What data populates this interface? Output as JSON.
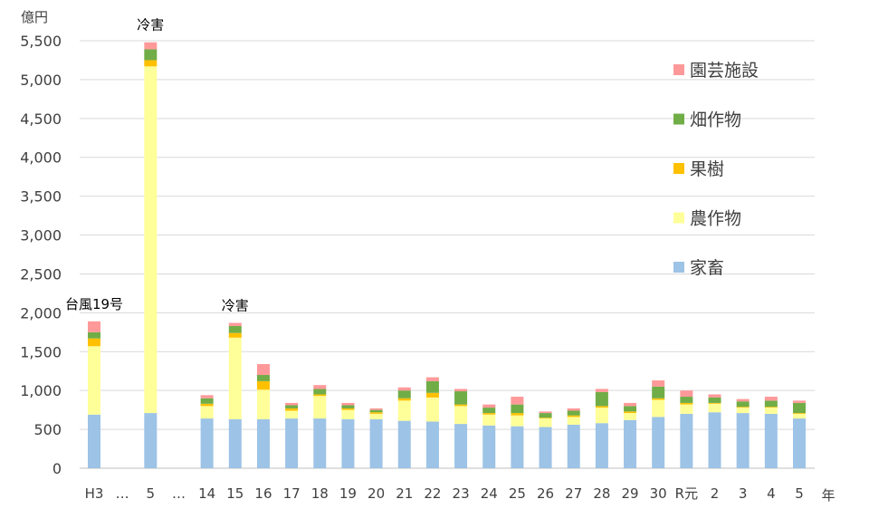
{
  "chart_data": {
    "type": "bar",
    "stacked": true,
    "ylabel": "億円",
    "xlabel": "年",
    "ylim": [
      0,
      5500
    ],
    "yticks": [
      0,
      500,
      1000,
      1500,
      2000,
      2500,
      3000,
      3500,
      4000,
      4500,
      5000,
      5500
    ],
    "ytick_labels": [
      "0",
      "500",
      "1,000",
      "1,500",
      "2,000",
      "2,500",
      "3,000",
      "3,500",
      "4,000",
      "4,500",
      "5,000",
      "5,500"
    ],
    "grid": true,
    "legend_position": "top-right",
    "categories": [
      "H3",
      "…",
      "5",
      "…",
      "14",
      "15",
      "16",
      "17",
      "18",
      "19",
      "20",
      "21",
      "22",
      "23",
      "24",
      "25",
      "26",
      "27",
      "28",
      "29",
      "30",
      "R元",
      "2",
      "3",
      "4",
      "5"
    ],
    "series": [
      {
        "name": "家畜",
        "color": "#9DC3E6",
        "values": [
          690,
          null,
          710,
          null,
          640,
          630,
          630,
          640,
          640,
          630,
          630,
          610,
          600,
          570,
          550,
          540,
          530,
          560,
          580,
          620,
          660,
          700,
          720,
          710,
          700,
          640
        ]
      },
      {
        "name": "農作物",
        "color": "#FFFF99",
        "values": [
          880,
          null,
          4460,
          null,
          160,
          1050,
          380,
          100,
          290,
          120,
          70,
          260,
          310,
          230,
          140,
          140,
          110,
          100,
          200,
          90,
          220,
          120,
          110,
          70,
          80,
          60
        ]
      },
      {
        "name": "果樹",
        "color": "#FFC000",
        "values": [
          100,
          null,
          80,
          null,
          30,
          60,
          110,
          30,
          20,
          20,
          20,
          30,
          60,
          20,
          20,
          30,
          10,
          20,
          20,
          20,
          20,
          20,
          10,
          10,
          10,
          10
        ]
      },
      {
        "name": "畑作物",
        "color": "#70AD47",
        "values": [
          80,
          null,
          140,
          null,
          70,
          90,
          80,
          40,
          70,
          40,
          30,
          100,
          150,
          170,
          70,
          110,
          60,
          60,
          180,
          70,
          150,
          80,
          70,
          70,
          80,
          130
        ]
      },
      {
        "name": "園芸施設",
        "color": "#FF9999",
        "values": [
          140,
          null,
          90,
          null,
          40,
          40,
          140,
          30,
          50,
          30,
          20,
          40,
          50,
          30,
          40,
          100,
          20,
          30,
          40,
          40,
          80,
          80,
          40,
          30,
          50,
          30
        ]
      }
    ],
    "legend_order": [
      "園芸施設",
      "畑作物",
      "果樹",
      "農作物",
      "家畜"
    ],
    "annotations": [
      {
        "text": "台風19号",
        "category": "H3"
      },
      {
        "text": "冷害",
        "category": "5"
      },
      {
        "text": "冷害",
        "category": "15"
      }
    ]
  }
}
